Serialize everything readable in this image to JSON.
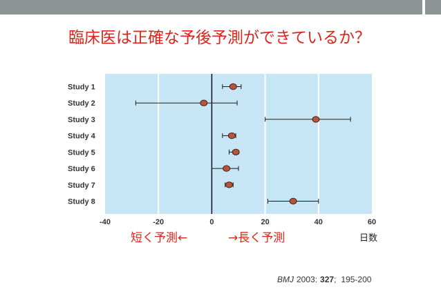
{
  "slide": {
    "title": "臨床医は正確な予後予測ができているか？",
    "citation": {
      "journal": "BMJ",
      "year": "2003:",
      "volume": "327",
      "volume_separator": ";",
      "pages": "195-200"
    }
  },
  "colors": {
    "top_bar": "#8d9393",
    "title": "#d9261c",
    "direction_labels": "#d9261c",
    "plot_background": "#c6e6f6",
    "gridline": "#ffffff",
    "reference_line": "#111111",
    "error_bar": "#1a1a1a",
    "point_fill": "#b5553f",
    "point_stroke": "#4a2016",
    "label_text": "#333333"
  },
  "chart_data": {
    "type": "scatter",
    "xlabel": "日数",
    "annotations": [
      "短く予測←",
      "→長く予測"
    ],
    "categories": [
      "Study 1",
      "Study 2",
      "Study 3",
      "Study 4",
      "Study 5",
      "Study 6",
      "Study 7",
      "Study 8"
    ],
    "series": [
      {
        "values": [
          8,
          -3,
          39,
          7.5,
          9,
          5.5,
          6.5,
          30.5
        ],
        "ci_low": [
          4,
          -28.5,
          20,
          4,
          6.5,
          0,
          5,
          21
        ],
        "ci_high": [
          11,
          9.5,
          52,
          9,
          10,
          10,
          8,
          40
        ]
      }
    ],
    "xlim": [
      -40,
      60
    ],
    "xticks": [
      -40,
      -20,
      0,
      20,
      40,
      60
    ],
    "reference_line": 0,
    "grid": true
  }
}
